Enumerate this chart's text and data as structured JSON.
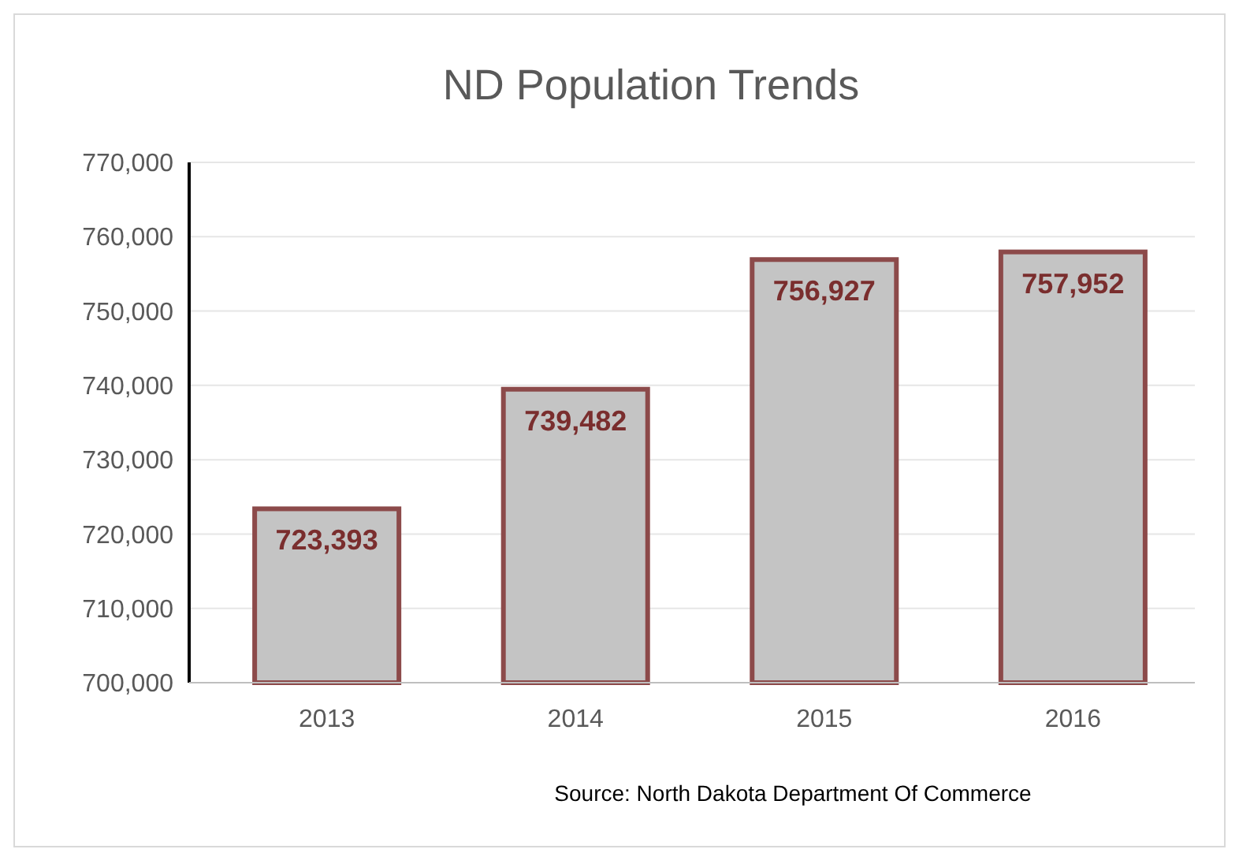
{
  "chart_data": {
    "type": "bar",
    "title": "ND Population Trends",
    "categories": [
      "2013",
      "2014",
      "2015",
      "2016"
    ],
    "values": [
      723393,
      739482,
      756927,
      757952
    ],
    "value_labels": [
      "723,393",
      "739,482",
      "756,927",
      "757,952"
    ],
    "color": "#c4c4c4",
    "ylim": [
      700000,
      770000
    ],
    "yticks": [
      {
        "value": 700000,
        "label": "700,000"
      },
      {
        "value": 710000,
        "label": "710,000"
      },
      {
        "value": 720000,
        "label": "720,000"
      },
      {
        "value": 730000,
        "label": "730,000"
      },
      {
        "value": 740000,
        "label": "740,000"
      },
      {
        "value": 750000,
        "label": "750,000"
      },
      {
        "value": 760000,
        "label": "760,000"
      },
      {
        "value": 770000,
        "label": "770,000"
      }
    ],
    "grid": "y",
    "annotations": [
      "Source: North Dakota Department Of Commerce"
    ]
  }
}
